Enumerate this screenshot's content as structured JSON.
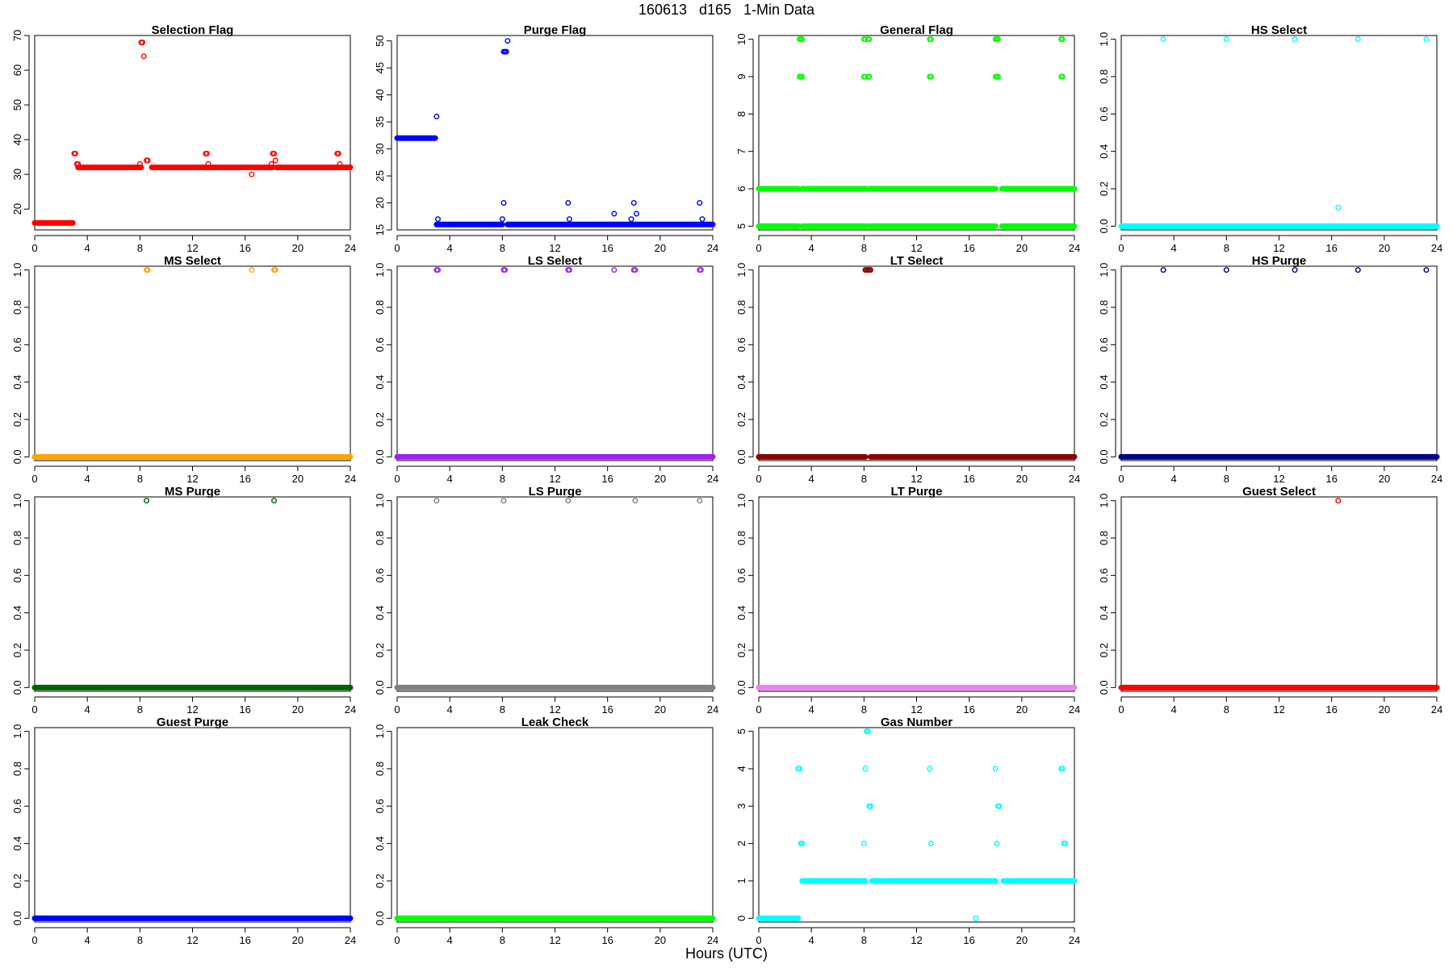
{
  "title": "160613   d165   1-Min Data",
  "xlabel": "Hours (UTC)",
  "chart_data": [
    {
      "type": "scatter",
      "title": "Selection Flag",
      "color": "#ff0000",
      "xlim": [
        0,
        24
      ],
      "ylim": [
        14,
        70
      ],
      "xticks": [
        0,
        4,
        8,
        12,
        16,
        20,
        24
      ],
      "yticks": [
        20,
        30,
        40,
        50,
        60,
        70
      ],
      "segments": [
        [
          0,
          2.9,
          16
        ],
        [
          3.3,
          8.1,
          32
        ],
        [
          8.9,
          18.1,
          32
        ],
        [
          18.4,
          24,
          32
        ]
      ],
      "points": [
        [
          3.0,
          36
        ],
        [
          3.1,
          36
        ],
        [
          3.2,
          33
        ],
        [
          3.3,
          33
        ],
        [
          8.1,
          68
        ],
        [
          8.2,
          68
        ],
        [
          8.3,
          64
        ],
        [
          8.0,
          33
        ],
        [
          8.5,
          34
        ],
        [
          8.6,
          34
        ],
        [
          13.0,
          36
        ],
        [
          13.1,
          36
        ],
        [
          13.2,
          33
        ],
        [
          16.5,
          30
        ],
        [
          18.0,
          33
        ],
        [
          18.1,
          36
        ],
        [
          18.2,
          36
        ],
        [
          18.3,
          34
        ],
        [
          23.0,
          36
        ],
        [
          23.1,
          36
        ],
        [
          23.2,
          33
        ]
      ]
    },
    {
      "type": "scatter",
      "title": "Purge Flag",
      "color": "#0000ff",
      "xlim": [
        0,
        24
      ],
      "ylim": [
        15,
        51
      ],
      "xticks": [
        0,
        4,
        8,
        12,
        16,
        20,
        24
      ],
      "yticks": [
        15,
        20,
        25,
        30,
        35,
        40,
        45,
        50
      ],
      "segments": [
        [
          0,
          2.9,
          32
        ],
        [
          3.0,
          8.0,
          16
        ],
        [
          8.4,
          24,
          16
        ]
      ],
      "points": [
        [
          3.0,
          36
        ],
        [
          3.1,
          17
        ],
        [
          8.0,
          17
        ],
        [
          8.1,
          20
        ],
        [
          8.1,
          48
        ],
        [
          8.2,
          48
        ],
        [
          8.3,
          48
        ],
        [
          8.4,
          50
        ],
        [
          13.0,
          20
        ],
        [
          13.1,
          17
        ],
        [
          16.5,
          18
        ],
        [
          17.8,
          17
        ],
        [
          18.0,
          20
        ],
        [
          18.2,
          18
        ],
        [
          23.0,
          20
        ],
        [
          23.2,
          17
        ]
      ]
    },
    {
      "type": "scatter",
      "title": "General Flag",
      "color": "#00ff00",
      "xlim": [
        0,
        24
      ],
      "ylim": [
        4.9,
        10.1
      ],
      "xticks": [
        0,
        4,
        8,
        12,
        16,
        20,
        24
      ],
      "yticks": [
        5,
        6,
        7,
        8,
        9,
        10
      ],
      "segments": [
        [
          0,
          3.0,
          5
        ],
        [
          0,
          3.0,
          6
        ],
        [
          3.3,
          8.1,
          5
        ],
        [
          3.3,
          8.1,
          6
        ],
        [
          8.5,
          18.0,
          5
        ],
        [
          8.5,
          18.0,
          6
        ],
        [
          18.5,
          24,
          5
        ],
        [
          18.5,
          24,
          6
        ]
      ],
      "points": [
        [
          3.1,
          9
        ],
        [
          3.2,
          9
        ],
        [
          3.3,
          9
        ],
        [
          3.1,
          10
        ],
        [
          3.2,
          10
        ],
        [
          3.3,
          10
        ],
        [
          8.0,
          9
        ],
        [
          8.1,
          9
        ],
        [
          8.0,
          10
        ],
        [
          8.1,
          10
        ],
        [
          8.3,
          9
        ],
        [
          8.4,
          9
        ],
        [
          8.3,
          10
        ],
        [
          8.4,
          10
        ],
        [
          13.0,
          9
        ],
        [
          13.1,
          9
        ],
        [
          13.0,
          10
        ],
        [
          13.1,
          10
        ],
        [
          18.0,
          9
        ],
        [
          18.1,
          9
        ],
        [
          18.2,
          9
        ],
        [
          18.0,
          10
        ],
        [
          18.1,
          10
        ],
        [
          18.2,
          10
        ],
        [
          23.0,
          9
        ],
        [
          23.1,
          9
        ],
        [
          23.0,
          10
        ],
        [
          23.1,
          10
        ],
        [
          8.3,
          6
        ],
        [
          8.3,
          5
        ]
      ]
    },
    {
      "type": "scatter",
      "title": "HS Select",
      "color": "#00ffff",
      "xlim": [
        0,
        24
      ],
      "ylim": [
        -0.02,
        1.02
      ],
      "xticks": [
        0,
        4,
        8,
        12,
        16,
        20,
        24
      ],
      "yticks": [
        0.0,
        0.2,
        0.4,
        0.6,
        0.8,
        1.0
      ],
      "segments": [
        [
          0,
          24,
          0
        ]
      ],
      "points": [
        [
          3.2,
          1
        ],
        [
          8.0,
          1
        ],
        [
          13.2,
          1
        ],
        [
          18.0,
          1
        ],
        [
          23.2,
          1
        ],
        [
          16.5,
          0.1
        ]
      ]
    },
    {
      "type": "scatter",
      "title": "MS Select",
      "color": "#ffa500",
      "xlim": [
        0,
        24
      ],
      "ylim": [
        -0.02,
        1.02
      ],
      "xticks": [
        0,
        4,
        8,
        12,
        16,
        20,
        24
      ],
      "yticks": [
        0.0,
        0.2,
        0.4,
        0.6,
        0.8,
        1.0
      ],
      "segments": [
        [
          0,
          24,
          0
        ]
      ],
      "points": [
        [
          8.5,
          1
        ],
        [
          8.6,
          1
        ],
        [
          16.5,
          1
        ],
        [
          18.2,
          1
        ],
        [
          18.3,
          1
        ]
      ]
    },
    {
      "type": "scatter",
      "title": "LS Select",
      "color": "#a020f0",
      "xlim": [
        0,
        24
      ],
      "ylim": [
        -0.02,
        1.02
      ],
      "xticks": [
        0,
        4,
        8,
        12,
        16,
        20,
        24
      ],
      "yticks": [
        0.0,
        0.2,
        0.4,
        0.6,
        0.8,
        1.0
      ],
      "segments": [
        [
          0,
          24,
          0
        ]
      ],
      "points": [
        [
          3.0,
          1
        ],
        [
          3.1,
          1
        ],
        [
          8.1,
          1
        ],
        [
          8.2,
          1
        ],
        [
          13.0,
          1
        ],
        [
          13.1,
          1
        ],
        [
          16.5,
          1
        ],
        [
          18.0,
          1
        ],
        [
          18.1,
          1
        ],
        [
          23.0,
          1
        ],
        [
          23.1,
          1
        ]
      ]
    },
    {
      "type": "scatter",
      "title": "LT Select",
      "color": "#8b0000",
      "xlim": [
        0,
        24
      ],
      "ylim": [
        -0.02,
        1.02
      ],
      "xticks": [
        0,
        4,
        8,
        12,
        16,
        20,
        24
      ],
      "yticks": [
        0.0,
        0.2,
        0.4,
        0.6,
        0.8,
        1.0
      ],
      "segments": [
        [
          0,
          8.1,
          0
        ],
        [
          8.5,
          24,
          0
        ]
      ],
      "points": [
        [
          8.1,
          1
        ],
        [
          8.2,
          1
        ],
        [
          8.3,
          1
        ],
        [
          8.4,
          1
        ],
        [
          8.5,
          1
        ]
      ]
    },
    {
      "type": "scatter",
      "title": "HS Purge",
      "color": "#00008b",
      "xlim": [
        0,
        24
      ],
      "ylim": [
        -0.02,
        1.02
      ],
      "xticks": [
        0,
        4,
        8,
        12,
        16,
        20,
        24
      ],
      "yticks": [
        0.0,
        0.2,
        0.4,
        0.6,
        0.8,
        1.0
      ],
      "segments": [
        [
          0,
          24,
          0
        ]
      ],
      "points": [
        [
          3.2,
          1
        ],
        [
          8.0,
          1
        ],
        [
          13.2,
          1
        ],
        [
          18.0,
          1
        ],
        [
          23.2,
          1
        ]
      ]
    },
    {
      "type": "scatter",
      "title": "MS Purge",
      "color": "#006400",
      "xlim": [
        0,
        24
      ],
      "ylim": [
        -0.02,
        1.02
      ],
      "xticks": [
        0,
        4,
        8,
        12,
        16,
        20,
        24
      ],
      "yticks": [
        0.0,
        0.2,
        0.4,
        0.6,
        0.8,
        1.0
      ],
      "segments": [
        [
          0,
          24,
          0
        ]
      ],
      "points": [
        [
          8.5,
          1
        ],
        [
          18.2,
          1
        ]
      ]
    },
    {
      "type": "scatter",
      "title": "LS Purge",
      "color": "#808080",
      "xlim": [
        0,
        24
      ],
      "ylim": [
        -0.02,
        1.02
      ],
      "xticks": [
        0,
        4,
        8,
        12,
        16,
        20,
        24
      ],
      "yticks": [
        0.0,
        0.2,
        0.4,
        0.6,
        0.8,
        1.0
      ],
      "segments": [
        [
          0,
          24,
          0
        ]
      ],
      "points": [
        [
          3.0,
          1
        ],
        [
          8.1,
          1
        ],
        [
          13.0,
          1
        ],
        [
          18.1,
          1
        ],
        [
          23.0,
          1
        ]
      ]
    },
    {
      "type": "scatter",
      "title": "LT Purge",
      "color": "#ee82ee",
      "xlim": [
        0,
        24
      ],
      "ylim": [
        -0.02,
        1.02
      ],
      "xticks": [
        0,
        4,
        8,
        12,
        16,
        20,
        24
      ],
      "yticks": [
        0.0,
        0.2,
        0.4,
        0.6,
        0.8,
        1.0
      ],
      "segments": [
        [
          0,
          24,
          0
        ]
      ],
      "points": []
    },
    {
      "type": "scatter",
      "title": "Guest Select",
      "color": "#ff0000",
      "xlim": [
        0,
        24
      ],
      "ylim": [
        -0.02,
        1.02
      ],
      "xticks": [
        0,
        4,
        8,
        12,
        16,
        20,
        24
      ],
      "yticks": [
        0.0,
        0.2,
        0.4,
        0.6,
        0.8,
        1.0
      ],
      "segments": [
        [
          0,
          24,
          0
        ]
      ],
      "points": [
        [
          16.5,
          1
        ]
      ]
    },
    {
      "type": "scatter",
      "title": "Guest Purge",
      "color": "#0000ff",
      "xlim": [
        0,
        24
      ],
      "ylim": [
        -0.02,
        1.02
      ],
      "xticks": [
        0,
        4,
        8,
        12,
        16,
        20,
        24
      ],
      "yticks": [
        0.0,
        0.2,
        0.4,
        0.6,
        0.8,
        1.0
      ],
      "segments": [
        [
          0,
          24,
          0
        ]
      ],
      "points": []
    },
    {
      "type": "scatter",
      "title": "Leak Check",
      "color": "#00ff00",
      "xlim": [
        0,
        24
      ],
      "ylim": [
        -0.02,
        1.02
      ],
      "xticks": [
        0,
        4,
        8,
        12,
        16,
        20,
        24
      ],
      "yticks": [
        0.0,
        0.2,
        0.4,
        0.6,
        0.8,
        1.0
      ],
      "segments": [
        [
          0,
          24,
          0
        ]
      ],
      "points": []
    },
    {
      "type": "scatter",
      "title": "Gas Number",
      "color": "#00ffff",
      "xlim": [
        0,
        24
      ],
      "ylim": [
        -0.1,
        5.1
      ],
      "xticks": [
        0,
        4,
        8,
        12,
        16,
        20,
        24
      ],
      "yticks": [
        0,
        1,
        2,
        3,
        4,
        5
      ],
      "segments": [
        [
          0,
          3.0,
          0
        ],
        [
          3.3,
          8.1,
          1
        ],
        [
          8.6,
          18.0,
          1
        ],
        [
          18.6,
          24,
          1
        ]
      ],
      "points": [
        [
          3.0,
          4
        ],
        [
          3.1,
          4
        ],
        [
          3.2,
          2
        ],
        [
          3.3,
          2
        ],
        [
          8.0,
          2
        ],
        [
          8.1,
          4
        ],
        [
          8.2,
          5
        ],
        [
          8.3,
          5
        ],
        [
          8.4,
          3
        ],
        [
          8.5,
          3
        ],
        [
          13.0,
          4
        ],
        [
          13.1,
          2
        ],
        [
          16.5,
          0
        ],
        [
          18.0,
          4
        ],
        [
          18.1,
          2
        ],
        [
          18.2,
          3
        ],
        [
          18.3,
          3
        ],
        [
          23.0,
          4
        ],
        [
          23.1,
          4
        ],
        [
          23.2,
          2
        ],
        [
          23.3,
          2
        ]
      ]
    }
  ]
}
